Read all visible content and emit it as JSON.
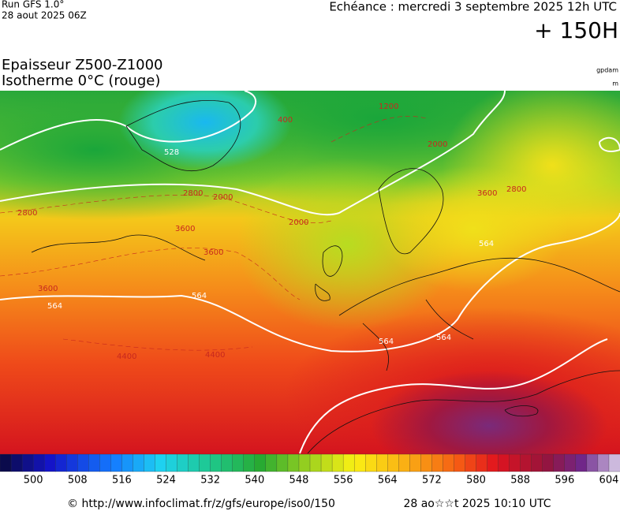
{
  "header": {
    "run": "Run GFS 1.0°",
    "run_date": "28 aout 2025 06Z",
    "echeance": "Echéance : mercredi 3 septembre 2025 12h UTC",
    "lead": "+ 150H",
    "title": "Epaisseur Z500-Z1000",
    "subtitle": "Isotherme 0°C (rouge)",
    "unit_main": "gpdam",
    "unit_iso": "m"
  },
  "map": {
    "labels": [
      "528",
      "564",
      "564",
      "564",
      "564",
      "564",
      "2800",
      "2800",
      "3600",
      "3600",
      "3600",
      "2000",
      "2000",
      "2000",
      "4400",
      "4400",
      "400",
      "1200",
      "2800",
      "3600"
    ]
  },
  "colorbar": {
    "ticks": [
      500,
      508,
      516,
      524,
      532,
      540,
      548,
      556,
      564,
      572,
      580,
      588,
      596,
      604
    ],
    "min": 494,
    "max": 606
  },
  "footer": {
    "source": "© http://www.infoclimat.fr/z/gfs/europe/iso0/150",
    "generated": "28 ao☆☆t 2025 10:10 UTC"
  }
}
